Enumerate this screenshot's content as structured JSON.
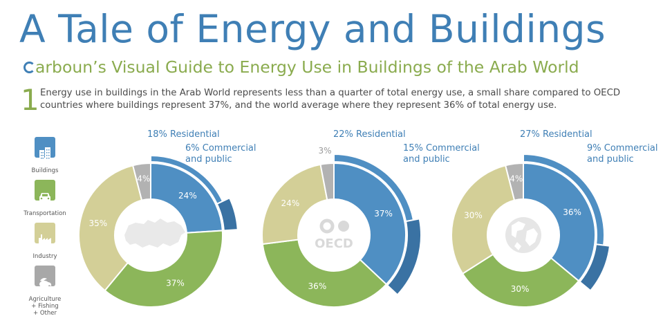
{
  "title": "A Tale of Energy and Buildings",
  "subtitle": "arboun’s Visual Guide to Energy Use in Buildings of the Arab World",
  "section_number": "1",
  "intro": "Energy use in buildings in the Arab World represents less than a quarter of total energy use, a small share compared to OECD countries where buildings represent 37%, and the world average where they represent 36% of total energy use.",
  "legend": [
    {
      "label": "Buildings",
      "color": "#4f8fc3",
      "icon": "buildings-icon"
    },
    {
      "label": "Transportation",
      "color": "#8cb65a",
      "icon": "car-icon"
    },
    {
      "label": "Industry",
      "color": "#d3cf97",
      "icon": "factory-icon"
    },
    {
      "label": "Agriculture\n+ Fishing\n+ Other",
      "color": "#a8a8a8",
      "icon": "agriculture-icon"
    }
  ],
  "colors": {
    "buildings": "#4f8fc3",
    "transportation": "#8cb65a",
    "industry": "#d3cf97",
    "other": "#b2b2b2",
    "residential": "#4f8fc3",
    "commercial": "#3a72a3",
    "label_blue": "#3f7fb5"
  },
  "chart_data": [
    {
      "type": "pie",
      "region_icon": "arab-world-map-icon",
      "categories": [
        "Buildings",
        "Transportation",
        "Industry",
        "Agriculture + Fishing + Other"
      ],
      "values": [
        24,
        37,
        35,
        4
      ],
      "value_labels": [
        "24%",
        "37%",
        "35%",
        "4%"
      ],
      "outer_ring": [
        {
          "name": "Residential",
          "value": 18,
          "label": "18% Residential"
        },
        {
          "name": "Commercial and public",
          "value": 6,
          "label": "6% Commercial\nand public"
        }
      ]
    },
    {
      "type": "pie",
      "region_icon": "oecd-logo",
      "region_label": "OECD",
      "categories": [
        "Buildings",
        "Transportation",
        "Industry",
        "Agriculture + Fishing + Other"
      ],
      "values": [
        37,
        36,
        24,
        3
      ],
      "value_labels": [
        "37%",
        "36%",
        "24%",
        "3%"
      ],
      "outer_ring": [
        {
          "name": "Residential",
          "value": 22,
          "label": "22% Residential"
        },
        {
          "name": "Commercial and public",
          "value": 15,
          "label": "15% Commercial\nand public"
        }
      ]
    },
    {
      "type": "pie",
      "region_icon": "globe-icon",
      "categories": [
        "Buildings",
        "Transportation",
        "Industry",
        "Agriculture + Fishing + Other"
      ],
      "values": [
        36,
        30,
        30,
        4
      ],
      "value_labels": [
        "36%",
        "30%",
        "30%",
        "4%"
      ],
      "outer_ring": [
        {
          "name": "Residential",
          "value": 27,
          "label": "27% Residential"
        },
        {
          "name": "Commercial and public",
          "value": 9,
          "label": "9% Commercial\nand public"
        }
      ]
    }
  ]
}
